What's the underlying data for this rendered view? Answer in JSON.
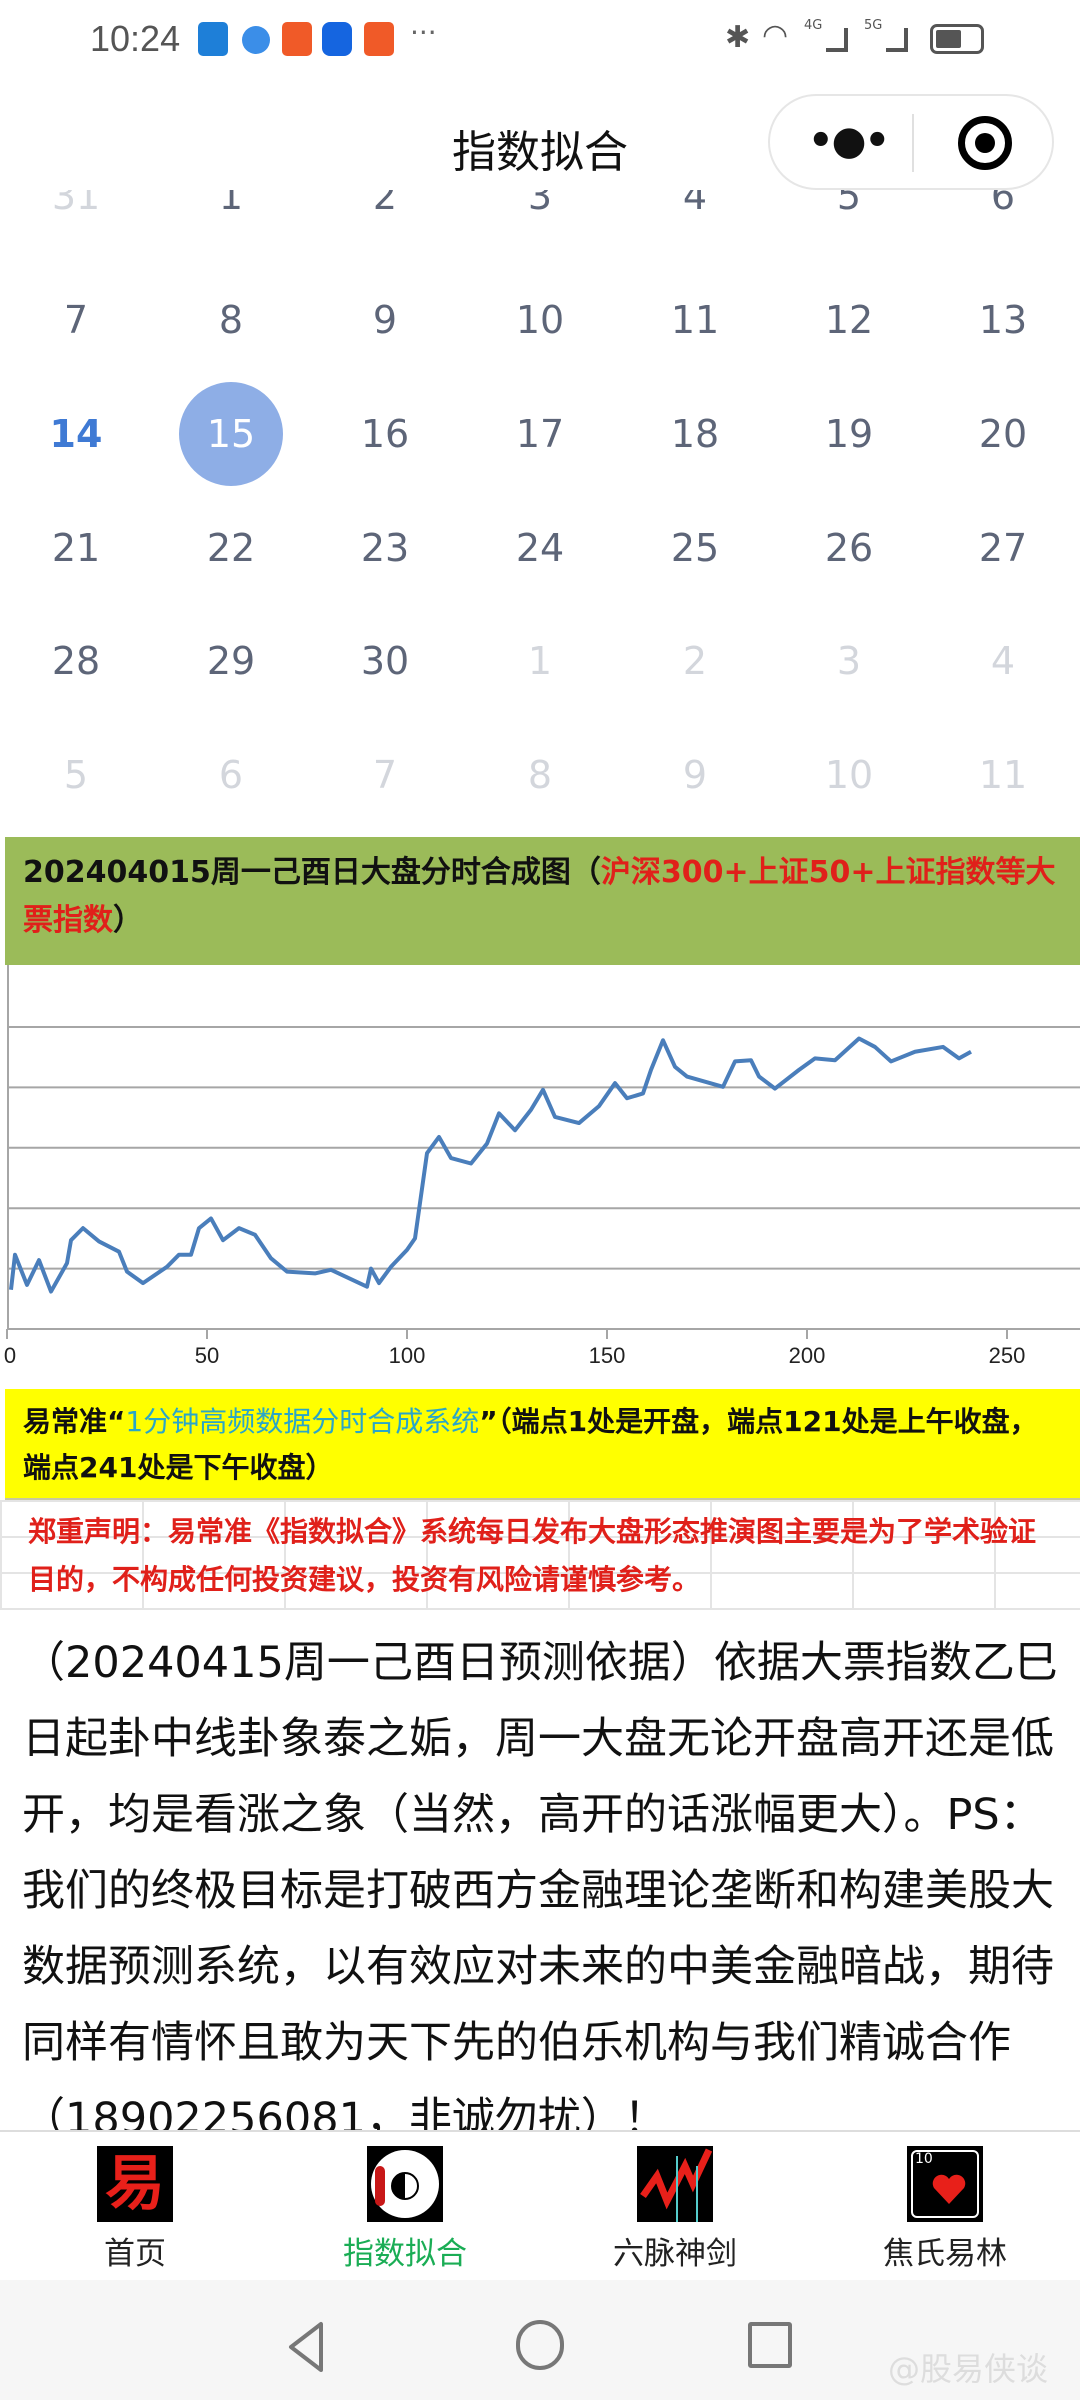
{
  "status_bar": {
    "time": "10:24",
    "more": "···",
    "network_labels": [
      "4G",
      "5G"
    ]
  },
  "header": {
    "title": "指数拟合",
    "menu_icon": "more-dots-icon",
    "close_icon": "target-circle-icon"
  },
  "calendar": {
    "rows": [
      [
        "31",
        "1",
        "2",
        "3",
        "4",
        "5",
        "6"
      ],
      [
        "7",
        "8",
        "9",
        "10",
        "11",
        "12",
        "13"
      ],
      [
        "14",
        "15",
        "16",
        "17",
        "18",
        "19",
        "20"
      ],
      [
        "21",
        "22",
        "23",
        "24",
        "25",
        "26",
        "27"
      ],
      [
        "28",
        "29",
        "30",
        "1",
        "2",
        "3",
        "4"
      ],
      [
        "5",
        "6",
        "7",
        "8",
        "9",
        "10",
        "11"
      ]
    ],
    "today": "14",
    "selected": "15",
    "accent": "#8eaee6"
  },
  "chart_header": {
    "black": "202404015周一己酉日大盘分时合成图（",
    "red": "沪深300+上证50+上证指数等大票指数",
    "close": "）"
  },
  "chart_data": {
    "type": "line",
    "x_ticks": [
      "0",
      "50",
      "100",
      "150",
      "200",
      "250"
    ],
    "xlim": [
      0,
      260
    ],
    "ylim": [
      0,
      6
    ],
    "y_tick_labels": false,
    "grid": "horizontal",
    "color": "#4a7ebb",
    "x": [
      1,
      2,
      5,
      8,
      11,
      15,
      16,
      19,
      23,
      28,
      30,
      34,
      40,
      43,
      46,
      48,
      51,
      54,
      58,
      62,
      66,
      70,
      77,
      81,
      90,
      91,
      93,
      96,
      100,
      102,
      105,
      108,
      111,
      116,
      120,
      123,
      127,
      131,
      134,
      137,
      143,
      148,
      152,
      155,
      159,
      161,
      164,
      167,
      170,
      179,
      182,
      186,
      188,
      192,
      198,
      202,
      207,
      213,
      217,
      221,
      227,
      234,
      238,
      241
    ],
    "y": [
      0.65,
      1.23,
      0.73,
      1.14,
      0.62,
      1.09,
      1.47,
      1.67,
      1.45,
      1.28,
      0.95,
      0.76,
      1.03,
      1.23,
      1.23,
      1.67,
      1.83,
      1.47,
      1.67,
      1.56,
      1.17,
      0.95,
      0.92,
      0.98,
      0.7,
      1.0,
      0.76,
      1.03,
      1.31,
      1.5,
      2.91,
      3.18,
      2.83,
      2.74,
      3.07,
      3.57,
      3.29,
      3.63,
      3.96,
      3.51,
      3.41,
      3.69,
      4.07,
      3.82,
      3.9,
      4.29,
      4.78,
      4.34,
      4.18,
      4.01,
      4.43,
      4.45,
      4.18,
      3.98,
      4.29,
      4.48,
      4.45,
      4.81,
      4.67,
      4.43,
      4.59,
      4.67,
      4.48,
      4.59
    ]
  },
  "system_note": {
    "prefix": "易常准“",
    "cyan": "1分钟高频数据分时合成系统",
    "suffix": "”（端点1处是开盘，端点121处是上午收盘，端点241处是下午收盘）"
  },
  "disclaimer": "郑重声明：易常准《指数拟合》系统每日发布大盘形态推演图主要是为了学术验证目的，不构成任何投资建议，投资有风险请谨慎参考。",
  "paragraph": "（20240415周一己酉日预测依据）依据大票指数乙巳日起卦中线卦象泰之姤，周一大盘无论开盘高开还是低开，均是看涨之象（当然，高开的话涨幅更大）。PS：我们的终极目标是打破西方金融理论垄断和构建美股大数据预测系统，以有效应对未来的中美金融暗战，期待同样有情怀且敢为天下先的伯乐机构与我们精诚合作（18902256081，非诚勿扰）！",
  "tabs": [
    {
      "label": "首页",
      "icon": "yi-character-icon",
      "glyph": "易"
    },
    {
      "label": "指数拟合",
      "icon": "yin-yang-icon",
      "active": true
    },
    {
      "label": "六脉神剑",
      "icon": "stock-chart-icon"
    },
    {
      "label": "焦氏易林",
      "icon": "heart-card-icon",
      "glyph": "10"
    }
  ],
  "watermark": "@股易侠谈"
}
